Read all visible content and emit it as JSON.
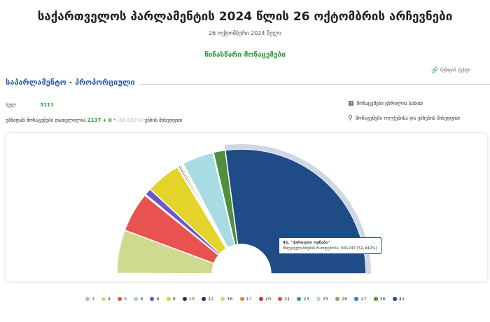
{
  "header": {
    "title": "საქართველოს პარლამენტის 2024 წლის 26 ოქტომბრის არჩევნები",
    "date": "26 ოქტომბერი 2024 წელი",
    "status": "წინასწარი მონაცემები"
  },
  "section": {
    "title": "საპარლამენტო - პროპორციული",
    "share_label": "მუნიციპ. ტესტი",
    "share_icon": "link-icon"
  },
  "stats": {
    "row1_label": "სულ",
    "row1_value": "3111",
    "row2_label": "უბნიდან მონაცემები დათვლილია",
    "row2_value": "2137 + 0",
    "row2_star": "*",
    "row2_pct": "(68.692%)",
    "row2_suffix": "უბნის მიხედვით"
  },
  "links": {
    "table_label": "მონაცემები ცხრილის სახით",
    "table_icon": "table-icon",
    "map_label": "მონაცემები ოლქებისა და უბნების მიხედვით",
    "map_icon": "map-pin-icon"
  },
  "tooltip": {
    "title": "41. \"ქართული ოცნება\"",
    "label": "მიღებული ხმების რაოდენობა:",
    "value": "901247 (52,942%)"
  },
  "chart_data": {
    "type": "pie",
    "title": "",
    "start_angle_deg": 180,
    "end_angle_deg": 360,
    "highlighted": "41",
    "series": [
      {
        "name": "3",
        "value": 0.1,
        "color": "#9fc4dc"
      },
      {
        "name": "4",
        "value": 11.0,
        "color": "#cfd98f"
      },
      {
        "name": "5",
        "value": 10.1,
        "color": "#e8534f"
      },
      {
        "name": "6",
        "value": 0.3,
        "color": "#a9c8e8"
      },
      {
        "name": "8",
        "value": 1.7,
        "color": "#6b55c9"
      },
      {
        "name": "9",
        "value": 8.8,
        "color": "#e3d32b"
      },
      {
        "name": "10",
        "value": 0.3,
        "color": "#333333"
      },
      {
        "name": "12",
        "value": 0.4,
        "color": "#1d2f66"
      },
      {
        "name": "16",
        "value": 0.5,
        "color": "#e6c97a"
      },
      {
        "name": "17",
        "value": 0.2,
        "color": "#e08a3a"
      },
      {
        "name": "20",
        "value": 0.1,
        "color": "#c63d2f"
      },
      {
        "name": "21",
        "value": 0.1,
        "color": "#e94b49"
      },
      {
        "name": "23",
        "value": 0.1,
        "color": "#3aa25a"
      },
      {
        "name": "25",
        "value": 7.9,
        "color": "#a8dbe3"
      },
      {
        "name": "26",
        "value": 0.1,
        "color": "#a9956b"
      },
      {
        "name": "27",
        "value": 0.1,
        "color": "#2f7fd0"
      },
      {
        "name": "36",
        "value": 3.0,
        "color": "#4f8f3f"
      },
      {
        "name": "41",
        "value": 52.942,
        "color": "#1f4b86"
      }
    ]
  }
}
